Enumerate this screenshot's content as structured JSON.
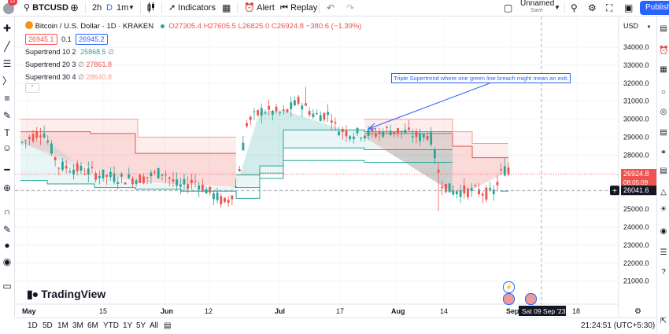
{
  "header": {
    "avatar_badge": "12",
    "symbol": "BTCUSD",
    "intervals": [
      "2h",
      "D",
      "1m"
    ],
    "indicators_label": "Indicators",
    "alert_label": "Alert",
    "replay_label": "Replay",
    "layout_name": "Unnamed",
    "layout_status": "Save",
    "publish_label": "Publish"
  },
  "legend": {
    "title": "Bitcoin / U.S. Dollar · 1D · KRAKEN",
    "ohlc": "O27305.4 H27605.5 L26825.0 C26924.8 −380.6 (−1.39%)",
    "bid": "26945.1",
    "spread": "0.1",
    "ask": "26945.2",
    "indicators": [
      {
        "name": "Supertrend 10 2",
        "value": "25868.5",
        "color": "#26a69a"
      },
      {
        "name": "Supertrend 20 3",
        "value": "27861.8",
        "color": "#ef5350"
      },
      {
        "name": "Supertrend 30 4",
        "value": "28640.8",
        "color": "#f3a18a"
      }
    ]
  },
  "annotation": "Triple Supertrend where one green line breach might mean an exit.",
  "price_axis": {
    "currency": "USD",
    "ticks": [
      "34000.0",
      "33000.0",
      "32000.0",
      "31000.0",
      "30000.0",
      "29000.0",
      "28000.0",
      "27000.0",
      "26000.0",
      "25000.0",
      "24000.0",
      "23000.0",
      "22000.0",
      "21000.0"
    ],
    "last_price": "26924.8",
    "countdown": "08:05:09",
    "crosshair_price": "26041.6"
  },
  "time_axis": {
    "labels": [
      "May",
      "15",
      "Jun",
      "12",
      "Jul",
      "17",
      "Aug",
      "14",
      "Sep",
      "18"
    ],
    "crosshair_date": "Sat 09 Sep '23"
  },
  "watermark": "TradingView",
  "bottom": {
    "ranges": [
      "1D",
      "5D",
      "1M",
      "3M",
      "6M",
      "YTD",
      "1Y",
      "5Y",
      "All"
    ],
    "clock": "21:24:51 (UTC+5:30)"
  },
  "colors": {
    "up": "#26a69a",
    "down": "#ef5350",
    "accent": "#2962ff"
  }
}
